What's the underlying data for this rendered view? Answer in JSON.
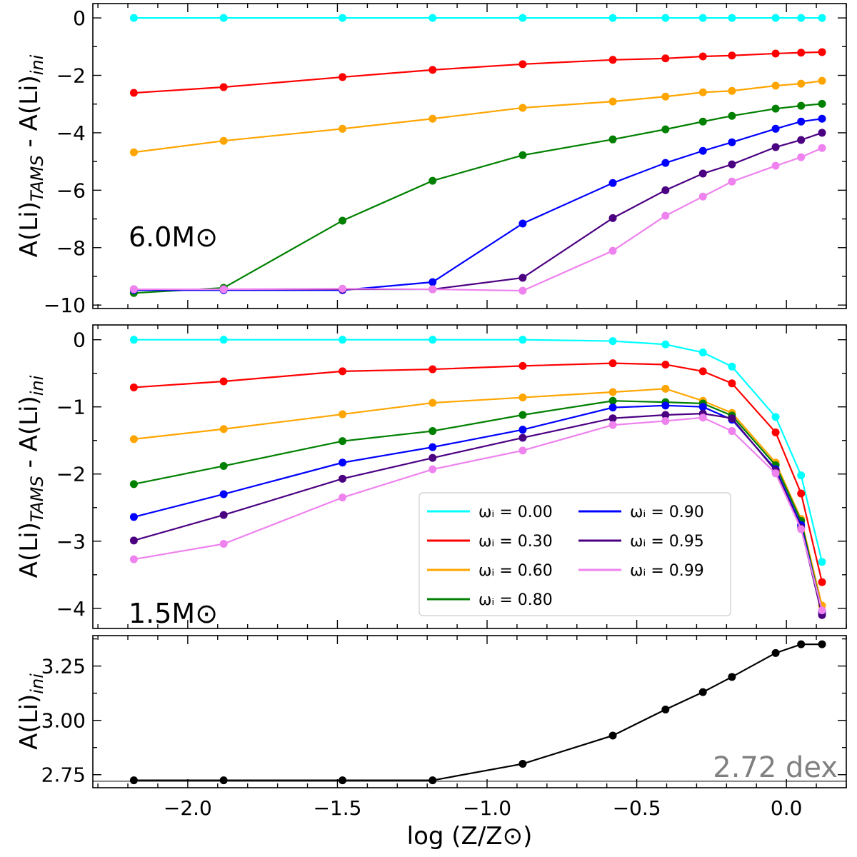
{
  "chart_data": [
    {
      "type": "line",
      "panel": "top",
      "annotation": "6.0M⊙",
      "ylabel": "A(Li)_TAMS - A(Li)_ini",
      "ylim": [
        -10.12,
        0.5
      ],
      "yticks": [
        0,
        -2,
        -4,
        -6,
        -8,
        -10
      ],
      "x": [
        -2.18,
        -1.88,
        -1.483,
        -1.182,
        -0.881,
        -0.58,
        -0.404,
        -0.279,
        -0.182,
        -0.036,
        0.049,
        0.119
      ],
      "series": [
        {
          "name": "ω_i = 0.00",
          "color": "#00ffff",
          "values": [
            0,
            0,
            0,
            0,
            0,
            0,
            0,
            0,
            0,
            0,
            0,
            0
          ]
        },
        {
          "name": "ω_i = 0.30",
          "color": "#ff0000",
          "values": [
            -2.61,
            -2.41,
            -2.06,
            -1.81,
            -1.61,
            -1.46,
            -1.41,
            -1.34,
            -1.31,
            -1.24,
            -1.21,
            -1.19
          ]
        },
        {
          "name": "ω_i = 0.60",
          "color": "#ffa500",
          "values": [
            -4.68,
            -4.28,
            -3.86,
            -3.51,
            -3.13,
            -2.91,
            -2.74,
            -2.59,
            -2.54,
            -2.36,
            -2.29,
            -2.19
          ]
        },
        {
          "name": "ω_i = 0.80",
          "color": "#008000",
          "values": [
            -9.58,
            -9.4,
            -7.06,
            -5.67,
            -4.78,
            -4.23,
            -3.88,
            -3.61,
            -3.41,
            -3.16,
            -3.06,
            -2.99
          ]
        },
        {
          "name": "ω_i = 0.90",
          "color": "#0000ff",
          "values": [
            -9.48,
            -9.48,
            -9.48,
            -9.2,
            -7.16,
            -5.75,
            -5.05,
            -4.63,
            -4.33,
            -3.86,
            -3.61,
            -3.51
          ]
        },
        {
          "name": "ω_i = 0.95",
          "color": "#4b0082",
          "values": [
            -9.45,
            -9.45,
            -9.45,
            -9.45,
            -9.05,
            -6.97,
            -6.0,
            -5.42,
            -5.1,
            -4.5,
            -4.25,
            -4.0
          ]
        },
        {
          "name": "ω_i = 0.99",
          "color": "#ee82ee",
          "values": [
            -9.45,
            -9.45,
            -9.43,
            -9.45,
            -9.5,
            -8.11,
            -6.89,
            -6.22,
            -5.7,
            -5.15,
            -4.85,
            -4.53
          ]
        }
      ]
    },
    {
      "type": "line",
      "panel": "middle",
      "annotation": "1.5M⊙",
      "ylabel": "A(Li)_TAMS - A(Li)_ini",
      "ylim": [
        -4.3,
        0.22
      ],
      "yticks": [
        0,
        -1,
        -2,
        -3,
        -4
      ],
      "legend": "lower-right, 2 columns",
      "x": [
        -2.18,
        -1.88,
        -1.483,
        -1.182,
        -0.881,
        -0.58,
        -0.404,
        -0.279,
        -0.182,
        -0.036,
        0.049,
        0.119
      ],
      "series": [
        {
          "name": "ω_i = 0.00",
          "color": "#00ffff",
          "values": [
            0,
            0,
            0,
            0,
            0,
            -0.02,
            -0.07,
            -0.19,
            -0.4,
            -1.15,
            -2.02,
            -3.31
          ]
        },
        {
          "name": "ω_i = 0.30",
          "color": "#ff0000",
          "values": [
            -0.71,
            -0.62,
            -0.47,
            -0.44,
            -0.39,
            -0.35,
            -0.37,
            -0.47,
            -0.65,
            -1.38,
            -2.29,
            -3.61
          ]
        },
        {
          "name": "ω_i = 0.60",
          "color": "#ffa500",
          "values": [
            -1.48,
            -1.33,
            -1.11,
            -0.94,
            -0.86,
            -0.78,
            -0.73,
            -0.91,
            -1.09,
            -1.83,
            -2.67,
            -3.96
          ]
        },
        {
          "name": "ω_i = 0.80",
          "color": "#008000",
          "values": [
            -2.15,
            -1.88,
            -1.51,
            -1.36,
            -1.12,
            -0.91,
            -0.93,
            -0.95,
            -1.13,
            -1.87,
            -2.7,
            -4.04
          ]
        },
        {
          "name": "ω_i = 0.90",
          "color": "#0000ff",
          "values": [
            -2.64,
            -2.3,
            -1.83,
            -1.6,
            -1.34,
            -1.01,
            -0.98,
            -1.0,
            -1.19,
            -1.93,
            -2.76,
            -4.06
          ]
        },
        {
          "name": "ω_i = 0.95",
          "color": "#4b0082",
          "values": [
            -2.99,
            -2.61,
            -2.07,
            -1.76,
            -1.46,
            -1.17,
            -1.12,
            -1.1,
            -1.17,
            -1.95,
            -2.8,
            -4.1
          ]
        },
        {
          "name": "ω_i = 0.99",
          "color": "#ee82ee",
          "values": [
            -3.27,
            -3.04,
            -2.35,
            -1.93,
            -1.65,
            -1.27,
            -1.21,
            -1.16,
            -1.36,
            -1.99,
            -2.82,
            -4.03
          ]
        }
      ]
    },
    {
      "type": "line",
      "panel": "bottom",
      "ylabel": "A(Li)_ini",
      "xlabel": "log (Z/Z⊙)",
      "ylim": [
        2.69,
        3.39
      ],
      "yticks": [
        2.75,
        3.0,
        3.25
      ],
      "ytick_labels": [
        "2.75",
        "3.00",
        "3.25"
      ],
      "reference_line": {
        "value": 2.72,
        "label": "2.72 dex",
        "color": "#808080"
      },
      "x": [
        -2.18,
        -1.88,
        -1.483,
        -1.182,
        -0.881,
        -0.58,
        -0.404,
        -0.279,
        -0.182,
        -0.036,
        0.049,
        0.119
      ],
      "series": [
        {
          "name": "A(Li)_ini",
          "color": "#000000",
          "values": [
            2.724,
            2.724,
            2.724,
            2.724,
            2.8,
            2.93,
            3.05,
            3.13,
            3.2,
            3.31,
            3.35,
            3.35
          ]
        }
      ]
    }
  ],
  "xaxis": {
    "xlim": [
      -2.317,
      0.2
    ],
    "ticks": [
      -2.0,
      -1.5,
      -1.0,
      -0.5,
      0.0
    ],
    "tick_labels": [
      "−2.0",
      "−1.5",
      "−1.0",
      "−0.5",
      "0.0"
    ],
    "label": "log (Z/Z⊙)"
  },
  "ylabels": {
    "top_main": "A(Li)",
    "top_sub1": "TAMS",
    "top_mid": " - A(Li)",
    "top_sub2": "ini",
    "bottom_main": "A(Li)",
    "bottom_sub": "ini"
  }
}
